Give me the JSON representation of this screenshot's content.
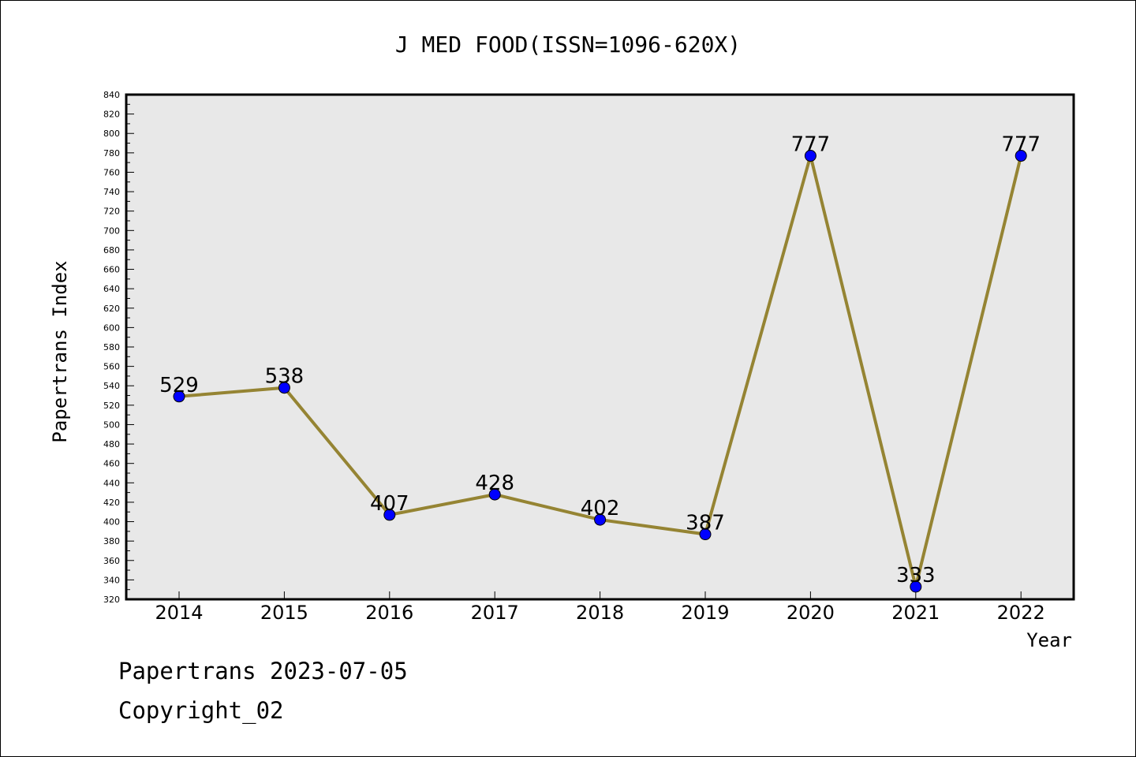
{
  "footer": {
    "line1": "Papertrans 2023-07-05",
    "line2": "Copyright_02"
  },
  "chart_data": {
    "type": "line",
    "title": "J MED FOOD(ISSN=1096-620X)",
    "xlabel": "Year",
    "ylabel": "Papertrans Index",
    "categories": [
      "2014",
      "2015",
      "2016",
      "2017",
      "2018",
      "2019",
      "2020",
      "2021",
      "2022"
    ],
    "series": [
      {
        "values": [
          529,
          538,
          407,
          428,
          402,
          387,
          777,
          333,
          777
        ]
      }
    ],
    "data_labels": [
      "529",
      "538",
      "407",
      "428",
      "402",
      "387",
      "777",
      "333",
      "777"
    ],
    "ylim": [
      320,
      840
    ],
    "ytick_step": 20,
    "grid": false,
    "plot_background": "#e8e8e8",
    "line_color": "#958433",
    "marker_color": "#0000ff"
  }
}
